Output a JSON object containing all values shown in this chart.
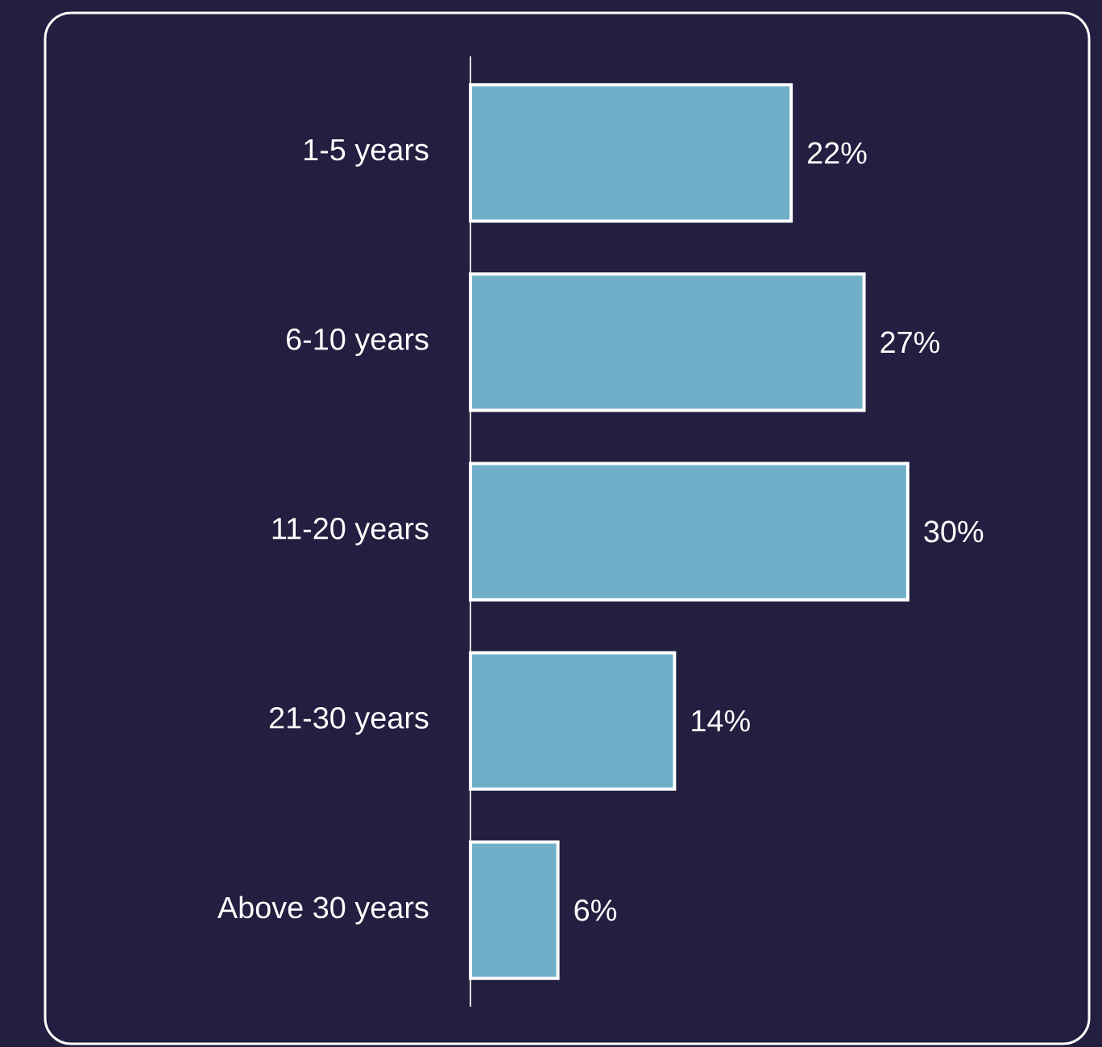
{
  "chart_data": {
    "type": "bar",
    "orientation": "horizontal",
    "categories": [
      "1-5 years",
      "6-10 years",
      "11-20 years",
      "21-30 years",
      "Above 30 years"
    ],
    "values": [
      22,
      27,
      30,
      14,
      6
    ],
    "value_labels": [
      "22%",
      "27%",
      "30%",
      "14%",
      "6%"
    ],
    "color": "#71afc9"
  }
}
